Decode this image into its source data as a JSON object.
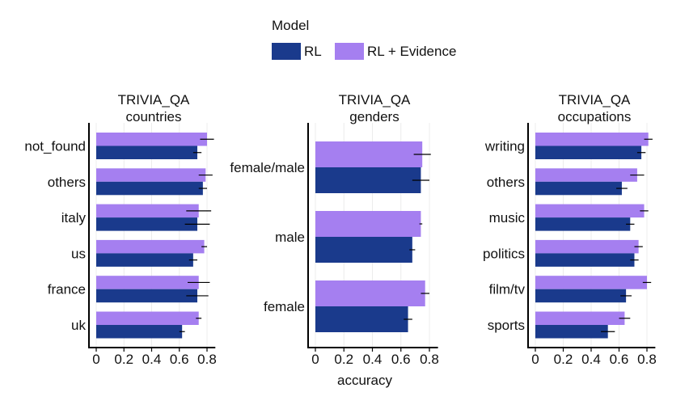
{
  "colors": {
    "RL": "#1a3a8c",
    "RL + Evidence": "#a57ff0",
    "grid": "#ececec",
    "axis": "#000000"
  },
  "legend": {
    "title": "Model",
    "items": [
      "RL",
      "RL + Evidence"
    ]
  },
  "shared_xlabel": "accuracy",
  "chart_data": [
    {
      "type": "bar",
      "orientation": "horizontal",
      "title": "TRIVIA_QA",
      "subtitle": "countries",
      "categories": [
        "not_found",
        "others",
        "italy",
        "us",
        "france",
        "uk"
      ],
      "series": [
        {
          "name": "RL + Evidence",
          "values": [
            0.8,
            0.79,
            0.74,
            0.78,
            0.74,
            0.74
          ],
          "errors": [
            0.05,
            0.05,
            0.09,
            0.02,
            0.08,
            0.02
          ]
        },
        {
          "name": "RL",
          "values": [
            0.73,
            0.77,
            0.73,
            0.7,
            0.73,
            0.62
          ],
          "errors": [
            0.03,
            0.03,
            0.09,
            0.03,
            0.08,
            0.02
          ]
        }
      ],
      "xlim": [
        -0.05,
        0.9
      ],
      "xticks": [
        "0",
        "0.2",
        "0.4",
        "0.6",
        "0.8"
      ],
      "grid": true
    },
    {
      "type": "bar",
      "orientation": "horizontal",
      "title": "TRIVIA_QA",
      "subtitle": "genders",
      "categories": [
        "female/male",
        "male",
        "female"
      ],
      "series": [
        {
          "name": "RL + Evidence",
          "values": [
            0.75,
            0.74,
            0.77
          ],
          "errors": [
            0.06,
            0.01,
            0.03
          ]
        },
        {
          "name": "RL",
          "values": [
            0.74,
            0.68,
            0.65
          ],
          "errors": [
            0.06,
            0.02,
            0.03
          ]
        }
      ],
      "xlim": [
        -0.05,
        0.9
      ],
      "xticks": [
        "0",
        "0.2",
        "0.4",
        "0.6",
        "0.8"
      ],
      "xlabel": "accuracy",
      "grid": true
    },
    {
      "type": "bar",
      "orientation": "horizontal",
      "title": "TRIVIA_QA",
      "subtitle": "occupations",
      "categories": [
        "writing",
        "others",
        "music",
        "politics",
        "film/tv",
        "sports"
      ],
      "series": [
        {
          "name": "RL + Evidence",
          "values": [
            0.81,
            0.73,
            0.78,
            0.74,
            0.8,
            0.64
          ],
          "errors": [
            0.03,
            0.05,
            0.03,
            0.03,
            0.03,
            0.04
          ]
        },
        {
          "name": "RL",
          "values": [
            0.76,
            0.62,
            0.68,
            0.71,
            0.65,
            0.52
          ],
          "errors": [
            0.03,
            0.04,
            0.03,
            0.03,
            0.04,
            0.05
          ]
        }
      ],
      "xlim": [
        -0.05,
        0.9
      ],
      "xticks": [
        "0",
        "0.2",
        "0.4",
        "0.6",
        "0.8"
      ],
      "grid": true
    }
  ]
}
